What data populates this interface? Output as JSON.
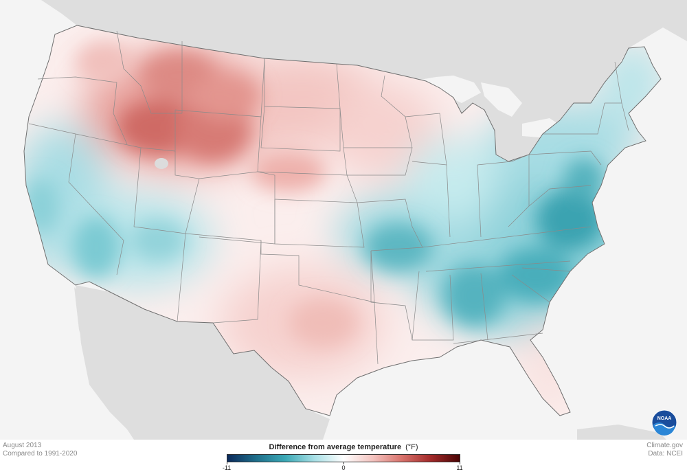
{
  "caption": {
    "month": "August 2013",
    "baseline": "Compared to 1991-2020"
  },
  "credits": {
    "site": "Climate.gov",
    "data_source": "Data: NCEI"
  },
  "legend": {
    "title": "Difference from average temperature",
    "unit": "(°F)",
    "min_label": "-11",
    "mid_label": "0",
    "max_label": "11",
    "colors": [
      "#0b2a5b",
      "#1f6f8b",
      "#3ba9b6",
      "#a8e0e6",
      "#ffffff",
      "#f4c4c0",
      "#d9736c",
      "#a32a2a",
      "#4a0505"
    ]
  },
  "logo": {
    "text": "NOAA"
  },
  "map": {
    "region": "Contiguous United States",
    "palette": {
      "background": "#f4f4f4",
      "land_outside": "#dedede",
      "water": "#f4f4f4",
      "warm_strong": "#c85450",
      "warm_mid": "#e9a39e",
      "warm_light": "#f7d9d6",
      "cool_light": "#cdeef1",
      "cool_mid": "#7fcbd3",
      "cool_strong": "#2f9aa8",
      "state_line": "#8a8a8a"
    }
  }
}
